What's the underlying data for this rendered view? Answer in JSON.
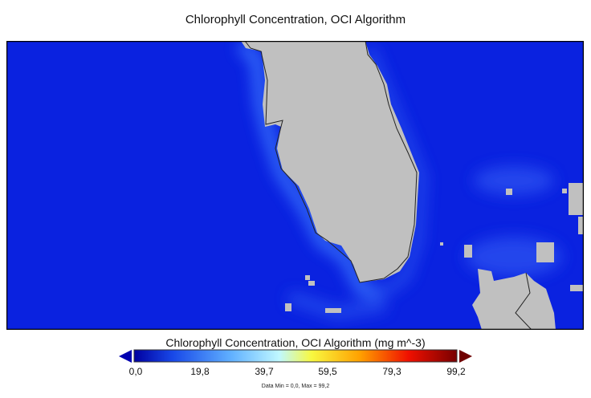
{
  "title": "Chlorophyll Concentration, OCI Algorithm",
  "colorbar": {
    "title": "Chlorophyll Concentration, OCI Algorithm (mg m^-3)",
    "ticks": [
      "0,0",
      "19,8",
      "39,7",
      "59,5",
      "79,3",
      "99,2"
    ],
    "min": 0.0,
    "max": 99.2
  },
  "footer": "Data Min = 0,0, Max = 99,2",
  "colors": {
    "ocean": "#0a22e0",
    "land": "#c0c0c0",
    "coast": "#222222"
  }
}
